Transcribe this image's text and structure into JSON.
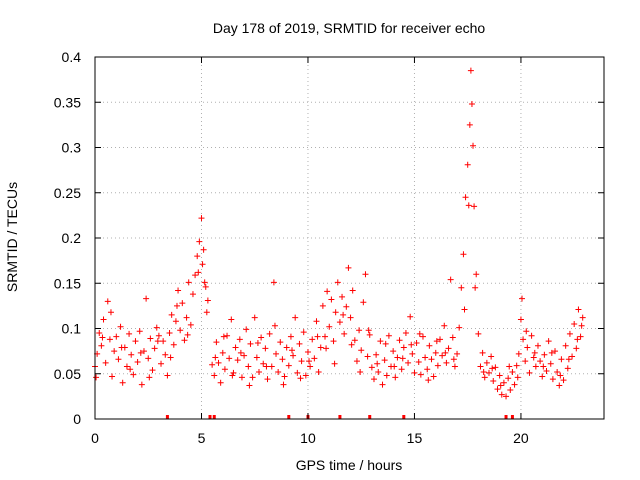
{
  "chart_data": {
    "type": "scatter",
    "title": "Day 178 of 2019, SRMTID for receiver echo",
    "xlabel": "GPS time / hours",
    "ylabel": "SRMTID / TECUs",
    "xlim": [
      0,
      23.9
    ],
    "ylim": [
      0,
      0.4
    ],
    "x_ticks": [
      0,
      5,
      10,
      15,
      20
    ],
    "x_tick_labels": [
      "0",
      "5",
      "10",
      "15",
      "20"
    ],
    "y_ticks": [
      0,
      0.05,
      0.1,
      0.15,
      0.2,
      0.25,
      0.3,
      0.35,
      0.4
    ],
    "y_tick_labels": [
      "0",
      "0.05",
      "0.1",
      "0.15",
      "0.2",
      "0.25",
      "0.3",
      "0.35",
      "0.4"
    ],
    "grid": true,
    "marker": "+",
    "color": "#ff0000",
    "zero_markers_x": [
      3.4,
      5.4,
      5.6,
      9.1,
      10.0,
      11.5,
      12.9,
      14.5,
      19.3,
      19.6
    ],
    "series": [
      {
        "name": "SRMTID",
        "points": [
          [
            0.0,
            0.058
          ],
          [
            0.1,
            0.072
          ],
          [
            0.2,
            0.095
          ],
          [
            0.3,
            0.081
          ],
          [
            0.4,
            0.11
          ],
          [
            0.5,
            0.062
          ],
          [
            0.6,
            0.13
          ],
          [
            0.7,
            0.088
          ],
          [
            0.8,
            0.047
          ],
          [
            0.9,
            0.075
          ],
          [
            1.0,
            0.091
          ],
          [
            1.1,
            0.066
          ],
          [
            1.2,
            0.102
          ],
          [
            1.3,
            0.04
          ],
          [
            1.4,
            0.079
          ],
          [
            1.5,
            0.058
          ],
          [
            1.6,
            0.094
          ],
          [
            1.7,
            0.071
          ],
          [
            1.8,
            0.049
          ],
          [
            1.9,
            0.086
          ],
          [
            2.0,
            0.063
          ],
          [
            2.1,
            0.097
          ],
          [
            2.2,
            0.038
          ],
          [
            2.3,
            0.075
          ],
          [
            2.4,
            0.133
          ],
          [
            2.5,
            0.067
          ],
          [
            2.6,
            0.089
          ],
          [
            2.7,
            0.054
          ],
          [
            2.8,
            0.078
          ],
          [
            2.9,
            0.101
          ],
          [
            3.0,
            0.092
          ],
          [
            3.1,
            0.061
          ],
          [
            3.2,
            0.086
          ],
          [
            3.3,
            0.071
          ],
          [
            3.4,
            0.048
          ],
          [
            3.5,
            0.095
          ],
          [
            3.6,
            0.115
          ],
          [
            3.7,
            0.082
          ],
          [
            3.8,
            0.108
          ],
          [
            3.9,
            0.142
          ],
          [
            4.0,
            0.098
          ],
          [
            4.1,
            0.128
          ],
          [
            4.2,
            0.087
          ],
          [
            4.3,
            0.112
          ],
          [
            4.4,
            0.151
          ],
          [
            4.5,
            0.104
          ],
          [
            4.6,
            0.138
          ],
          [
            4.7,
            0.159
          ],
          [
            4.8,
            0.18
          ],
          [
            4.9,
            0.196
          ],
          [
            5.0,
            0.222
          ],
          [
            5.1,
            0.187
          ],
          [
            5.2,
            0.146
          ],
          [
            5.3,
            0.131
          ],
          [
            5.5,
            0.06
          ],
          [
            5.6,
            0.048
          ],
          [
            5.7,
            0.085
          ],
          [
            5.8,
            0.062
          ],
          [
            5.9,
            0.04
          ],
          [
            6.0,
            0.073
          ],
          [
            6.1,
            0.055
          ],
          [
            6.2,
            0.092
          ],
          [
            6.3,
            0.067
          ],
          [
            6.4,
            0.11
          ],
          [
            6.5,
            0.051
          ],
          [
            6.6,
            0.079
          ],
          [
            6.7,
            0.065
          ],
          [
            6.8,
            0.088
          ],
          [
            6.9,
            0.046
          ],
          [
            7.0,
            0.07
          ],
          [
            7.1,
            0.099
          ],
          [
            7.2,
            0.058
          ],
          [
            7.3,
            0.083
          ],
          [
            7.4,
            0.046
          ],
          [
            7.5,
            0.112
          ],
          [
            7.6,
            0.068
          ],
          [
            7.7,
            0.052
          ],
          [
            7.8,
            0.09
          ],
          [
            7.9,
            0.061
          ],
          [
            8.0,
            0.078
          ],
          [
            8.1,
            0.044
          ],
          [
            8.2,
            0.094
          ],
          [
            8.3,
            0.058
          ],
          [
            8.4,
            0.151
          ],
          [
            8.5,
            0.072
          ],
          [
            8.6,
            0.052
          ],
          [
            8.7,
            0.085
          ],
          [
            8.8,
            0.066
          ],
          [
            8.9,
            0.047
          ],
          [
            9.0,
            0.079
          ],
          [
            9.1,
            0.059
          ],
          [
            9.2,
            0.091
          ],
          [
            9.3,
            0.07
          ],
          [
            9.4,
            0.112
          ],
          [
            9.5,
            0.051
          ],
          [
            9.6,
            0.083
          ],
          [
            9.7,
            0.064
          ],
          [
            9.8,
            0.096
          ],
          [
            9.9,
            0.048
          ],
          [
            10.0,
            0.074
          ],
          [
            10.1,
            0.058
          ],
          [
            10.2,
            0.088
          ],
          [
            10.3,
            0.067
          ],
          [
            10.4,
            0.108
          ],
          [
            10.5,
            0.052
          ],
          [
            10.6,
            0.079
          ],
          [
            10.7,
            0.125
          ],
          [
            10.8,
            0.091
          ],
          [
            10.9,
            0.141
          ],
          [
            11.0,
            0.102
          ],
          [
            11.1,
            0.132
          ],
          [
            11.2,
            0.086
          ],
          [
            11.3,
            0.118
          ],
          [
            11.4,
            0.151
          ],
          [
            11.5,
            0.107
          ],
          [
            11.6,
            0.135
          ],
          [
            11.7,
            0.094
          ],
          [
            11.8,
            0.124
          ],
          [
            11.9,
            0.167
          ],
          [
            12.0,
            0.112
          ],
          [
            12.1,
            0.142
          ],
          [
            12.2,
            0.087
          ],
          [
            12.3,
            0.064
          ],
          [
            12.4,
            0.098
          ],
          [
            12.5,
            0.076
          ],
          [
            12.6,
            0.129
          ],
          [
            12.7,
            0.16
          ],
          [
            12.8,
            0.069
          ],
          [
            12.9,
            0.093
          ],
          [
            13.0,
            0.057
          ],
          [
            13.1,
            0.044
          ],
          [
            13.2,
            0.071
          ],
          [
            13.3,
            0.052
          ],
          [
            13.4,
            0.086
          ],
          [
            13.5,
            0.038
          ],
          [
            13.6,
            0.065
          ],
          [
            13.7,
            0.048
          ],
          [
            13.8,
            0.092
          ],
          [
            13.9,
            0.058
          ],
          [
            14.0,
            0.075
          ],
          [
            14.1,
            0.046
          ],
          [
            14.2,
            0.068
          ],
          [
            14.3,
            0.087
          ],
          [
            14.4,
            0.055
          ],
          [
            14.5,
            0.079
          ],
          [
            14.6,
            0.095
          ],
          [
            14.7,
            0.062
          ],
          [
            14.8,
            0.113
          ],
          [
            14.9,
            0.072
          ],
          [
            15.0,
            0.051
          ],
          [
            15.1,
            0.084
          ],
          [
            15.2,
            0.063
          ],
          [
            15.3,
            0.049
          ],
          [
            15.4,
            0.091
          ],
          [
            15.5,
            0.068
          ],
          [
            15.6,
            0.055
          ],
          [
            15.7,
            0.081
          ],
          [
            15.8,
            0.066
          ],
          [
            15.9,
            0.047
          ],
          [
            16.0,
            0.073
          ],
          [
            16.1,
            0.059
          ],
          [
            16.2,
            0.088
          ],
          [
            16.3,
            0.07
          ],
          [
            16.4,
            0.103
          ],
          [
            16.5,
            0.062
          ],
          [
            16.6,
            0.078
          ],
          [
            16.7,
            0.154
          ],
          [
            16.8,
            0.09
          ],
          [
            16.9,
            0.058
          ],
          [
            17.0,
            0.072
          ],
          [
            17.1,
            0.101
          ],
          [
            17.2,
            0.145
          ],
          [
            17.3,
            0.182
          ],
          [
            17.4,
            0.245
          ],
          [
            17.5,
            0.281
          ],
          [
            17.6,
            0.325
          ],
          [
            17.65,
            0.385
          ],
          [
            17.7,
            0.348
          ],
          [
            17.75,
            0.302
          ],
          [
            17.8,
            0.235
          ],
          [
            17.9,
            0.16
          ],
          [
            18.0,
            0.094
          ],
          [
            18.1,
            0.058
          ],
          [
            18.2,
            0.073
          ],
          [
            18.3,
            0.046
          ],
          [
            18.4,
            0.062
          ],
          [
            18.5,
            0.051
          ],
          [
            18.6,
            0.069
          ],
          [
            18.7,
            0.042
          ],
          [
            18.8,
            0.057
          ],
          [
            18.9,
            0.033
          ],
          [
            19.0,
            0.048
          ],
          [
            19.1,
            0.027
          ],
          [
            19.2,
            0.04
          ],
          [
            19.3,
            0.025
          ],
          [
            19.4,
            0.045
          ],
          [
            19.5,
            0.032
          ],
          [
            19.6,
            0.052
          ],
          [
            19.7,
            0.038
          ],
          [
            19.8,
            0.059
          ],
          [
            19.9,
            0.072
          ],
          [
            20.0,
            0.11
          ],
          [
            20.05,
            0.133
          ],
          [
            20.1,
            0.088
          ],
          [
            20.2,
            0.064
          ],
          [
            20.3,
            0.079
          ],
          [
            20.4,
            0.051
          ],
          [
            20.5,
            0.092
          ],
          [
            20.6,
            0.068
          ],
          [
            20.7,
            0.058
          ],
          [
            20.8,
            0.081
          ],
          [
            20.9,
            0.064
          ],
          [
            21.0,
            0.047
          ],
          [
            21.1,
            0.071
          ],
          [
            21.2,
            0.053
          ],
          [
            21.3,
            0.086
          ],
          [
            21.4,
            0.061
          ],
          [
            21.5,
            0.044
          ],
          [
            21.6,
            0.075
          ],
          [
            21.7,
            0.052
          ],
          [
            21.8,
            0.037
          ],
          [
            21.9,
            0.066
          ],
          [
            22.0,
            0.043
          ],
          [
            22.1,
            0.081
          ],
          [
            22.2,
            0.056
          ],
          [
            22.3,
            0.094
          ],
          [
            22.4,
            0.069
          ],
          [
            22.5,
            0.105
          ],
          [
            22.6,
            0.078
          ],
          [
            22.7,
            0.121
          ],
          [
            22.8,
            0.091
          ],
          [
            22.9,
            0.112
          ],
          [
            0.05,
            0.046
          ],
          [
            0.35,
            0.09
          ],
          [
            0.75,
            0.118
          ],
          [
            1.25,
            0.079
          ],
          [
            1.65,
            0.055
          ],
          [
            2.15,
            0.073
          ],
          [
            2.55,
            0.046
          ],
          [
            2.95,
            0.086
          ],
          [
            3.55,
            0.068
          ],
          [
            3.85,
            0.125
          ],
          [
            4.35,
            0.093
          ],
          [
            4.85,
            0.162
          ],
          [
            5.05,
            0.171
          ],
          [
            5.15,
            0.151
          ],
          [
            5.25,
            0.118
          ],
          [
            5.65,
            0.068
          ],
          [
            6.05,
            0.091
          ],
          [
            6.45,
            0.048
          ],
          [
            6.85,
            0.073
          ],
          [
            7.25,
            0.037
          ],
          [
            7.65,
            0.084
          ],
          [
            8.05,
            0.058
          ],
          [
            8.45,
            0.103
          ],
          [
            8.85,
            0.038
          ],
          [
            9.25,
            0.076
          ],
          [
            9.65,
            0.045
          ],
          [
            10.05,
            0.064
          ],
          [
            10.45,
            0.091
          ],
          [
            10.85,
            0.078
          ],
          [
            11.25,
            0.061
          ],
          [
            11.65,
            0.115
          ],
          [
            12.05,
            0.082
          ],
          [
            12.45,
            0.052
          ],
          [
            12.85,
            0.098
          ],
          [
            13.25,
            0.061
          ],
          [
            13.65,
            0.083
          ],
          [
            14.05,
            0.058
          ],
          [
            14.45,
            0.067
          ],
          [
            14.85,
            0.082
          ],
          [
            15.25,
            0.094
          ],
          [
            15.65,
            0.043
          ],
          [
            16.05,
            0.086
          ],
          [
            16.45,
            0.073
          ],
          [
            16.85,
            0.066
          ],
          [
            17.35,
            0.121
          ],
          [
            17.55,
            0.236
          ],
          [
            17.85,
            0.145
          ],
          [
            18.25,
            0.052
          ],
          [
            18.65,
            0.056
          ],
          [
            19.05,
            0.037
          ],
          [
            19.45,
            0.058
          ],
          [
            19.85,
            0.046
          ],
          [
            20.25,
            0.097
          ],
          [
            20.65,
            0.073
          ],
          [
            21.05,
            0.058
          ],
          [
            21.45,
            0.073
          ],
          [
            21.85,
            0.048
          ],
          [
            22.25,
            0.066
          ],
          [
            22.65,
            0.088
          ],
          [
            22.85,
            0.103
          ]
        ]
      }
    ]
  }
}
